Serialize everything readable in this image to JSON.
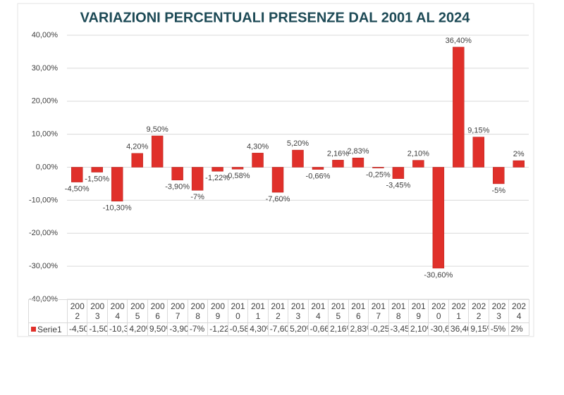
{
  "chart_data": {
    "type": "bar",
    "title": "VARIAZIONI PERCENTUALI PRESENZE DAL 2001 AL 2024",
    "categories": [
      "2002",
      "2003",
      "2004",
      "2005",
      "2006",
      "2007",
      "2008",
      "2009",
      "2010",
      "2011",
      "2012",
      "2013",
      "2014",
      "2015",
      "2016",
      "2017",
      "2018",
      "2019",
      "2020",
      "2021",
      "2022",
      "2023",
      "2024"
    ],
    "series": [
      {
        "name": "Serie1",
        "color": "#e0302a",
        "values": [
          -4.5,
          -1.5,
          -10.3,
          4.2,
          9.5,
          -3.9,
          -7,
          -1.22,
          -0.58,
          4.3,
          -7.6,
          5.2,
          -0.66,
          2.16,
          2.83,
          -0.25,
          -3.45,
          2.1,
          -30.6,
          36.4,
          9.15,
          -5,
          2
        ],
        "value_labels": [
          "-4,50%",
          "-1,50%",
          "-10,30%",
          "4,20%",
          "9,50%",
          "-3,90%",
          "-7%",
          "-1,22%",
          "-0,58%",
          "4,30%",
          "-7,60%",
          "5,20%",
          "-0,66%",
          "2,16%",
          "2,83%",
          "-0,25%",
          "-3,45%",
          "2,10%",
          "-30,60%",
          "36,40%",
          "9,15%",
          "-5%",
          "2%"
        ]
      }
    ],
    "ylim": [
      -40,
      40
    ],
    "yticks": [
      {
        "value": -40,
        "label": "-40,00%"
      },
      {
        "value": -30,
        "label": "-30,00%"
      },
      {
        "value": -20,
        "label": "-20,00%"
      },
      {
        "value": -10,
        "label": "-10,00%"
      },
      {
        "value": 0,
        "label": "0,00%"
      },
      {
        "value": 10,
        "label": "10,00%"
      },
      {
        "value": 20,
        "label": "20,00%"
      },
      {
        "value": 30,
        "label": "30,00%"
      },
      {
        "value": 40,
        "label": "40,00%"
      }
    ],
    "grid": true
  }
}
